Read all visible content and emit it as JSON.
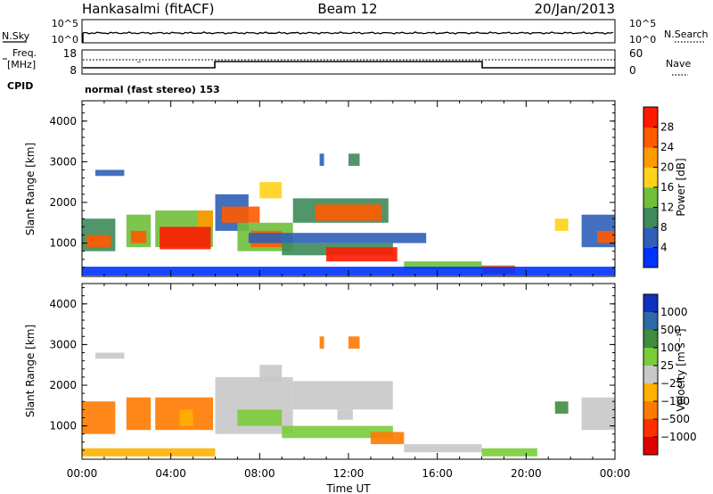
{
  "header": {
    "station": "Hankasalmi (fitACF)",
    "beam": "Beam 12",
    "date": "20/Jan/2013"
  },
  "strip": {
    "nsky_label": "N.Sky",
    "nsearch_label": "N.Search",
    "nsky_ticks": [
      "10^5",
      "10^0"
    ],
    "nsearch_ticks": [
      "10^5",
      "10^0"
    ],
    "freq_label_line1": "Freq.",
    "freq_label_line2": "[MHz]",
    "freq_ticks": [
      "18",
      "8"
    ],
    "nave_label": "Nave",
    "nave_ticks": [
      "60",
      "0"
    ],
    "cpid_label": "CPID",
    "cpid_value": "normal (fast stereo) 153"
  },
  "colorbars": {
    "power": {
      "label": "Power [dB]",
      "ticks": [
        "4",
        "8",
        "12",
        "16",
        "20",
        "24",
        "28"
      ],
      "colors": [
        "#0033ff",
        "#2f5fb8",
        "#3e8a5a",
        "#6fbf3a",
        "#ffd21a",
        "#ff9a00",
        "#ff5a00",
        "#ff1a00"
      ]
    },
    "velocity": {
      "label": "Velocity [m s⁻¹]",
      "ticks": [
        "1000",
        "500",
        "100",
        "25",
        "−25",
        "−100",
        "−500",
        "−1000"
      ],
      "colors": [
        "#1030c0",
        "#2f6aa8",
        "#3f8c3f",
        "#7acc3a",
        "#c8c8c8",
        "#ffb000",
        "#ff7a00",
        "#ff3000",
        "#e00000"
      ]
    }
  },
  "chart_data": [
    {
      "type": "heatmap",
      "panel": "power",
      "ylabel": "Slant Range [km]",
      "xlabel": "",
      "x_range_hours": [
        0,
        24
      ],
      "ylim": [
        180,
        4500
      ],
      "yticks": [
        "1000",
        "2000",
        "3000",
        "4000"
      ],
      "regions": [
        {
          "t0": 0.0,
          "t1": 1.5,
          "r0": 800,
          "r1": 1600,
          "c": 2
        },
        {
          "t0": 0.2,
          "t1": 1.3,
          "r0": 900,
          "r1": 1200,
          "c": 6
        },
        {
          "t0": 2.0,
          "t1": 3.1,
          "r0": 900,
          "r1": 1700,
          "c": 3
        },
        {
          "t0": 2.2,
          "t1": 2.9,
          "r0": 1000,
          "r1": 1300,
          "c": 6
        },
        {
          "t0": 3.3,
          "t1": 5.9,
          "r0": 900,
          "r1": 1800,
          "c": 3
        },
        {
          "t0": 3.5,
          "t1": 5.8,
          "r0": 850,
          "r1": 1400,
          "c": 7
        },
        {
          "t0": 5.2,
          "t1": 5.9,
          "r0": 1400,
          "r1": 1800,
          "c": 5
        },
        {
          "t0": 0.6,
          "t1": 1.9,
          "r0": 2650,
          "r1": 2800,
          "c": 1
        },
        {
          "t0": 6.0,
          "t1": 7.5,
          "r0": 1300,
          "r1": 2200,
          "c": 1
        },
        {
          "t0": 6.3,
          "t1": 8.0,
          "r0": 1500,
          "r1": 1900,
          "c": 6
        },
        {
          "t0": 7.0,
          "t1": 9.5,
          "r0": 800,
          "r1": 1500,
          "c": 3
        },
        {
          "t0": 7.6,
          "t1": 9.0,
          "r0": 900,
          "r1": 1300,
          "c": 6
        },
        {
          "t0": 8.0,
          "t1": 9.0,
          "r0": 2100,
          "r1": 2500,
          "c": 4
        },
        {
          "t0": 9.5,
          "t1": 13.8,
          "r0": 1500,
          "r1": 2100,
          "c": 2
        },
        {
          "t0": 10.5,
          "t1": 13.5,
          "r0": 1550,
          "r1": 1950,
          "c": 6
        },
        {
          "t0": 9.0,
          "t1": 14.0,
          "r0": 700,
          "r1": 1000,
          "c": 2
        },
        {
          "t0": 11.0,
          "t1": 14.2,
          "r0": 550,
          "r1": 900,
          "c": 7
        },
        {
          "t0": 7.5,
          "t1": 15.5,
          "r0": 1000,
          "r1": 1250,
          "c": 1
        },
        {
          "t0": 14.5,
          "t1": 18.0,
          "r0": 350,
          "r1": 550,
          "c": 3
        },
        {
          "t0": 18.0,
          "t1": 19.5,
          "r0": 250,
          "r1": 450,
          "c": 6
        },
        {
          "t0": 21.3,
          "t1": 21.9,
          "r0": 1300,
          "r1": 1600,
          "c": 4
        },
        {
          "t0": 22.5,
          "t1": 24.0,
          "r0": 900,
          "r1": 1700,
          "c": 1
        },
        {
          "t0": 23.2,
          "t1": 24.0,
          "r0": 1000,
          "r1": 1300,
          "c": 6
        },
        {
          "t0": 10.7,
          "t1": 10.9,
          "r0": 2900,
          "r1": 3200,
          "c": 1
        },
        {
          "t0": 12.0,
          "t1": 12.5,
          "r0": 2900,
          "r1": 3200,
          "c": 2
        },
        {
          "t0": 0.0,
          "t1": 24.0,
          "r0": 200,
          "r1": 420,
          "c": 0
        }
      ]
    },
    {
      "type": "heatmap",
      "panel": "velocity",
      "ylabel": "Slant Range [km]",
      "xlabel": "Time UT",
      "x_range_hours": [
        0,
        24
      ],
      "xticks": [
        "00:00",
        "04:00",
        "08:00",
        "12:00",
        "16:00",
        "20:00",
        "00:00"
      ],
      "ylim": [
        180,
        4500
      ],
      "yticks": [
        "1000",
        "2000",
        "3000",
        "4000"
      ],
      "regions": [
        {
          "t0": 0.0,
          "t1": 1.5,
          "r0": 800,
          "r1": 1600,
          "c": 6
        },
        {
          "t0": 2.0,
          "t1": 3.1,
          "r0": 900,
          "r1": 1700,
          "c": 6
        },
        {
          "t0": 3.3,
          "t1": 5.9,
          "r0": 900,
          "r1": 1700,
          "c": 6
        },
        {
          "t0": 4.4,
          "t1": 5.0,
          "r0": 1000,
          "r1": 1400,
          "c": 5
        },
        {
          "t0": 0.6,
          "t1": 1.9,
          "r0": 2650,
          "r1": 2800,
          "c": 4
        },
        {
          "t0": 6.0,
          "t1": 9.5,
          "r0": 800,
          "r1": 2200,
          "c": 4
        },
        {
          "t0": 7.0,
          "t1": 9.0,
          "r0": 1000,
          "r1": 1400,
          "c": 3
        },
        {
          "t0": 8.0,
          "t1": 9.0,
          "r0": 2100,
          "r1": 2500,
          "c": 4
        },
        {
          "t0": 9.5,
          "t1": 14.0,
          "r0": 1400,
          "r1": 2100,
          "c": 4
        },
        {
          "t0": 9.0,
          "t1": 14.0,
          "r0": 700,
          "r1": 1000,
          "c": 3
        },
        {
          "t0": 13.0,
          "t1": 14.5,
          "r0": 550,
          "r1": 850,
          "c": 6
        },
        {
          "t0": 11.5,
          "t1": 12.2,
          "r0": 1150,
          "r1": 1400,
          "c": 4
        },
        {
          "t0": 14.5,
          "t1": 18.0,
          "r0": 350,
          "r1": 550,
          "c": 4
        },
        {
          "t0": 18.0,
          "t1": 20.5,
          "r0": 250,
          "r1": 450,
          "c": 3
        },
        {
          "t0": 21.3,
          "t1": 21.9,
          "r0": 1300,
          "r1": 1600,
          "c": 2
        },
        {
          "t0": 22.5,
          "t1": 24.0,
          "r0": 900,
          "r1": 1700,
          "c": 4
        },
        {
          "t0": 10.7,
          "t1": 10.9,
          "r0": 2900,
          "r1": 3200,
          "c": 6
        },
        {
          "t0": 12.0,
          "t1": 12.5,
          "r0": 2900,
          "r1": 3200,
          "c": 6
        },
        {
          "t0": 0.0,
          "t1": 6.0,
          "r0": 250,
          "r1": 450,
          "c": 5
        }
      ]
    }
  ]
}
